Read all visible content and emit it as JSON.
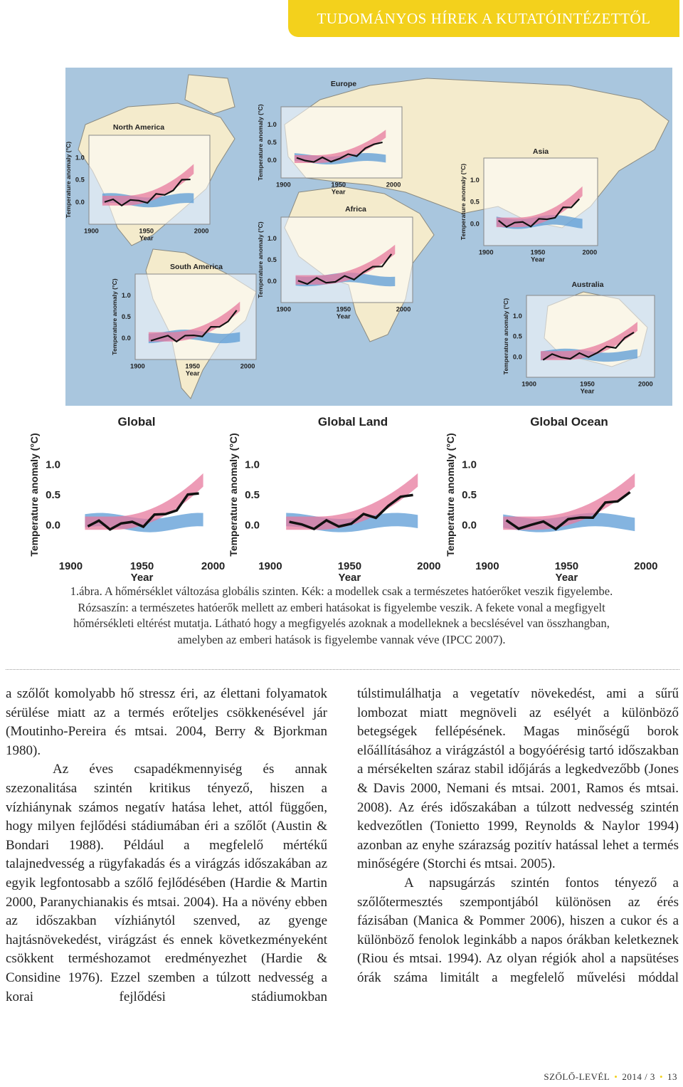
{
  "header": {
    "title": "TUDOMÁNYOS HÍREK A KUTATÓINTÉZETTŐL"
  },
  "figure": {
    "axis": {
      "ylabel": "Temperature anomaly (°C)",
      "yticks": [
        "1.0",
        "0.5",
        "0.0"
      ],
      "xticks": [
        "1900",
        "1950",
        "2000"
      ],
      "xlabel": "Year"
    },
    "panels": [
      {
        "title": "North America"
      },
      {
        "title": "Europe"
      },
      {
        "title": "Asia"
      },
      {
        "title": "Africa"
      },
      {
        "title": "South America"
      },
      {
        "title": "Australia"
      },
      {
        "title": "Global"
      },
      {
        "title": "Global Land"
      },
      {
        "title": "Global Ocean"
      }
    ]
  },
  "caption": [
    "1.ábra. A hőmérséklet változása globális szinten. Kék: a modellek csak a természetes hatóerőket veszik figyelembe.",
    "Rózsaszín: a természetes hatóerők mellett az emberi hatásokat is figyelembe veszik. A fekete vonal a megfigyelt",
    "hőmérsékleti eltérést mutatja. Látható hogy a megfigyelés azoknak a modelleknek a becslésével van összhangban,",
    "amelyben az emberi hatások is figyelembe vannak véve (IPCC 2007)."
  ],
  "body": {
    "left": [
      "a szőlőt komolyabb hő stressz éri, az élettani folyamatok sérülése miatt az a termés erőteljes csökkenésével jár (Moutinho-Pereira és mtsai. 2004, Berry & Bjorkman 1980).",
      "Az éves csapadékmennyiség és annak szezonalitása szintén kritikus tényező, hiszen a vízhiánynak számos negatív hatása lehet, attól függően, hogy milyen fejlődési stádiumában éri a szőlőt (Austin & Bondari 1988). Például a megfelelő mértékű talajnedvesség a rügyfakadás és a virágzás időszakában az egyik legfontosabb a szőlő fejlődésében (Hardie & Martin 2000, Paranychianakis és mtsai. 2004). Ha a növény ebben az időszakban vízhiánytól szenved, az gyenge hajtásnövekedést, virágzást és ennek következményeként csökkent terméshozamot eredményezhet (Hardie & Considine 1976). Ezzel szemben a túlzott nedvesség a korai fejlődési stádiumokban"
    ],
    "right": [
      "túlstimulálhatja a vegetatív növekedést, ami a sűrű lombozat miatt megnöveli az esélyét a különböző betegségek fellépésének. Magas minőségű borok előállításához a virágzástól a bogyóérésig tartó időszakban a mérsékelten száraz stabil időjárás a legkedvezőbb (Jones & Davis 2000, Nemani és mtsai. 2001, Ramos és mtsai. 2008). Az érés időszakában a túlzott nedvesség szintén kedvezőtlen (Tonietto 1999, Reynolds & Naylor 1994) azonban az enyhe szárazság pozitív hatással lehet a termés minőségére (Storchi és mtsai. 2005).",
      "A napsugárzás szintén fontos tényező a szőlőtermesztés szempontjából különösen az érés fázisában (Manica & Pommer 2006), hiszen a cukor és a különböző fenolok leginkább a napos órákban keletkeznek (Riou és mtsai. 1994). Az olyan régiók ahol a napsütéses órák száma limitált a megfelelő művelési móddal"
    ]
  },
  "footer": {
    "journal": "SZŐLŐ-LEVÉL",
    "issue": "2014 / 3",
    "page": "13"
  }
}
